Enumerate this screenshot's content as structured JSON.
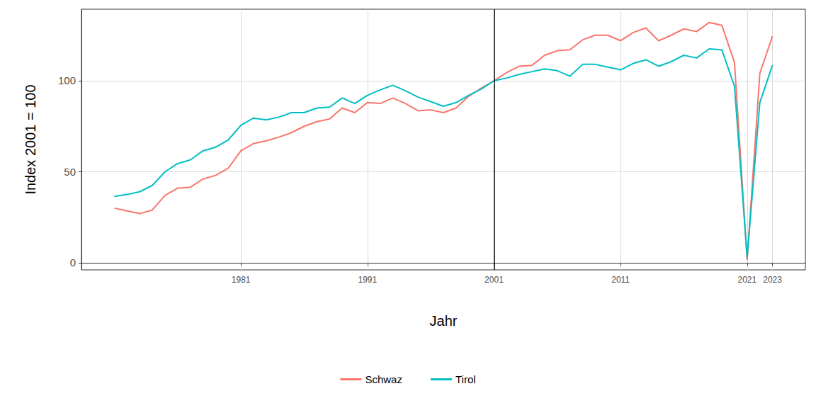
{
  "chart_data": {
    "type": "line",
    "x_label": "Jahr",
    "y_label": "Index 2001 = 100",
    "x": [
      1971,
      1972,
      1973,
      1974,
      1975,
      1976,
      1977,
      1978,
      1979,
      1980,
      1981,
      1982,
      1983,
      1984,
      1985,
      1986,
      1987,
      1988,
      1989,
      1990,
      1991,
      1992,
      1993,
      1994,
      1995,
      1996,
      1997,
      1998,
      1999,
      2000,
      2001,
      2002,
      2003,
      2004,
      2005,
      2006,
      2007,
      2008,
      2009,
      2010,
      2011,
      2012,
      2013,
      2014,
      2015,
      2016,
      2017,
      2018,
      2019,
      2020,
      2021,
      2022,
      2023
    ],
    "series": [
      {
        "name": "Schwaz",
        "color": "#F8766D",
        "values": [
          30,
          28.5,
          27,
          29,
          37,
          41,
          41.5,
          46,
          48,
          52,
          61.5,
          65.5,
          67,
          69,
          71.5,
          75,
          77.5,
          79,
          85,
          82.5,
          88,
          87.5,
          90.5,
          87.5,
          83.5,
          84,
          82.5,
          85,
          91.5,
          96,
          100,
          104.5,
          108,
          108.5,
          114,
          116.5,
          117,
          122.5,
          125,
          125,
          122,
          126.5,
          129,
          122,
          125,
          128.5,
          127,
          132,
          130.5,
          110,
          1.5,
          104,
          124.5
        ]
      },
      {
        "name": "Tirol",
        "color": "#00BFC4",
        "values": [
          36.5,
          37.5,
          39,
          42.5,
          50,
          54.5,
          56.5,
          61.5,
          63.5,
          67.5,
          75.5,
          79.5,
          78.5,
          80,
          82.5,
          82.5,
          85,
          85.5,
          90.5,
          87.5,
          92,
          95,
          97.5,
          94.5,
          91,
          88.5,
          86,
          88,
          92,
          95.5,
          100,
          101.5,
          103.5,
          105,
          106.5,
          105.5,
          102.5,
          109,
          109,
          107.5,
          106,
          109.5,
          111.5,
          108,
          110.5,
          114,
          112.5,
          117.5,
          117,
          97,
          3,
          88,
          108.5
        ]
      }
    ],
    "xlim": [
      1968.4,
      2025.6
    ],
    "xticks": [
      1981,
      1991,
      2001,
      2011,
      2021,
      2023
    ],
    "ylim": [
      -3.9,
      139.3
    ],
    "yticks": [
      0,
      50,
      100
    ],
    "reference_line": {
      "x": 2001
    },
    "grid": true,
    "legend": "bottom"
  }
}
